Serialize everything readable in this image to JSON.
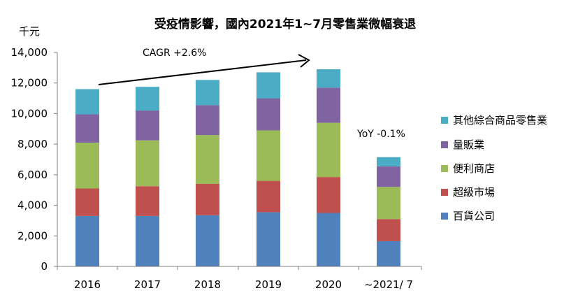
{
  "chart_data": {
    "type": "bar",
    "stacked": true,
    "title": "受疫情影響，國內2021年1~7月零售業微幅衰退",
    "ylabel": "千元",
    "xlabel": "",
    "ylim": [
      0,
      14000
    ],
    "yticks": [
      "0",
      "2,000",
      "4,000",
      "6,000",
      "8,000",
      "10,000",
      "12,000",
      "14,000"
    ],
    "ytick_values": [
      0,
      2000,
      4000,
      6000,
      8000,
      10000,
      12000,
      14000
    ],
    "categories": [
      "2016",
      "2017",
      "2018",
      "2019",
      "2020",
      "~2021/ 7"
    ],
    "series": [
      {
        "name": "百貨公司",
        "color": "#4f81bd",
        "values": [
          3300,
          3300,
          3350,
          3550,
          3500,
          1650
        ]
      },
      {
        "name": "超級市場",
        "color": "#c0504d",
        "values": [
          1800,
          1950,
          2050,
          2050,
          2350,
          1450
        ]
      },
      {
        "name": "便利商店",
        "color": "#9bbb59",
        "values": [
          3000,
          3000,
          3200,
          3300,
          3550,
          2100
        ]
      },
      {
        "name": "量販業",
        "color": "#8064a2",
        "values": [
          1850,
          1950,
          1950,
          2100,
          2300,
          1350
        ]
      },
      {
        "name": "其他綜合商品零售業",
        "color": "#4bacc6",
        "values": [
          1650,
          1550,
          1650,
          1700,
          1200,
          600
        ]
      }
    ],
    "legend_position": "right",
    "grid": false,
    "annotations": {
      "cagr": "CAGR +2.6%",
      "yoy": "YoY -0.1%"
    }
  }
}
